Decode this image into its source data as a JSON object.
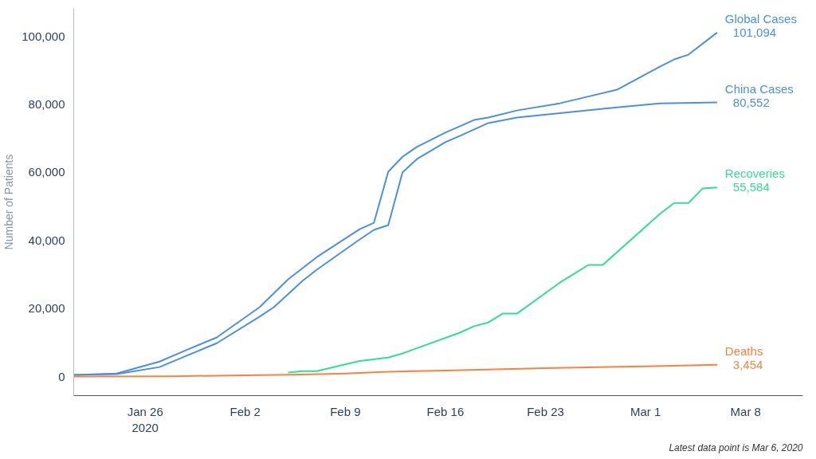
{
  "chart_data": {
    "type": "line",
    "ylabel": "Number of Patients",
    "annotations": [
      "Latest data point is Mar 6, 2020"
    ],
    "xlim": [
      "2020-01-21",
      "2020-03-12"
    ],
    "xticks": [
      {
        "value": "2020-01-26",
        "label": "Jan 26\n2020"
      },
      {
        "value": "2020-02-02",
        "label": "Feb 2"
      },
      {
        "value": "2020-02-09",
        "label": "Feb 9"
      },
      {
        "value": "2020-02-16",
        "label": "Feb 16"
      },
      {
        "value": "2020-02-23",
        "label": "Feb 23"
      },
      {
        "value": "2020-03-01",
        "label": "Mar 1"
      },
      {
        "value": "2020-03-08",
        "label": "Mar 8"
      }
    ],
    "yticks": [
      {
        "value": 0,
        "label": "0"
      },
      {
        "value": 20000,
        "label": "20,000"
      },
      {
        "value": 40000,
        "label": "40,000"
      },
      {
        "value": 60000,
        "label": "60,000"
      },
      {
        "value": 80000,
        "label": "80,000"
      },
      {
        "value": 100000,
        "label": "100,000"
      }
    ],
    "ylim": [
      -5600,
      108200
    ],
    "grid": false,
    "line_style": "solid",
    "series": [
      {
        "name": "Global Cases",
        "color": "#4a90e2",
        "x": [
          "2020-01-21",
          "2020-01-24",
          "2020-01-27",
          "2020-01-29",
          "2020-01-31",
          "2020-02-03",
          "2020-02-05",
          "2020-02-07",
          "2020-02-10",
          "2020-02-11",
          "2020-02-12",
          "2020-02-13",
          "2020-02-14",
          "2020-02-16",
          "2020-02-18",
          "2020-02-19",
          "2020-02-21",
          "2020-02-24",
          "2020-02-25",
          "2020-02-28",
          "2020-03-02",
          "2020-03-03",
          "2020-03-04",
          "2020-03-06"
        ],
        "values": [
          500,
          900,
          4400,
          8000,
          11500,
          20400,
          28600,
          35100,
          43300,
          45200,
          60200,
          64600,
          67500,
          71700,
          75400,
          76100,
          78200,
          80300,
          81300,
          84300,
          91100,
          93200,
          94600,
          101094
        ],
        "value_labels": [
          null,
          null,
          null,
          null,
          null,
          null,
          null,
          null,
          null,
          null,
          null,
          null,
          null,
          null,
          null,
          null,
          null,
          null,
          null,
          null,
          null,
          null,
          null,
          "101,094"
        ]
      },
      {
        "name": "China Cases",
        "color": "#4a90e2",
        "x": [
          "2020-01-21",
          "2020-01-24",
          "2020-01-27",
          "2020-01-29",
          "2020-01-31",
          "2020-02-03",
          "2020-02-04",
          "2020-02-06",
          "2020-02-07",
          "2020-02-10",
          "2020-02-11",
          "2020-02-12",
          "2020-02-13",
          "2020-02-14",
          "2020-02-16",
          "2020-02-17",
          "2020-02-19",
          "2020-02-21",
          "2020-02-28",
          "2020-03-02",
          "2020-03-06"
        ],
        "values": [
          500,
          700,
          2800,
          6300,
          9800,
          17600,
          20400,
          28100,
          31400,
          40300,
          43100,
          44500,
          60000,
          63900,
          68900,
          70700,
          74500,
          76100,
          79100,
          80300,
          80552
        ],
        "value_labels": [
          null,
          null,
          null,
          null,
          null,
          null,
          null,
          null,
          null,
          null,
          null,
          null,
          null,
          null,
          null,
          null,
          null,
          null,
          null,
          null,
          "80,552"
        ]
      },
      {
        "name": "Recoveries",
        "color": "#2fe092",
        "x": [
          "2020-02-05",
          "2020-02-06",
          "2020-02-07",
          "2020-02-09",
          "2020-02-10",
          "2020-02-12",
          "2020-02-13",
          "2020-02-17",
          "2020-02-18",
          "2020-02-19",
          "2020-02-20",
          "2020-02-21",
          "2020-02-24",
          "2020-02-25",
          "2020-02-26",
          "2020-02-27",
          "2020-03-02",
          "2020-03-03",
          "2020-03-04",
          "2020-03-05",
          "2020-03-06"
        ],
        "values": [
          1200,
          1600,
          1600,
          3600,
          4600,
          5600,
          6800,
          12900,
          14800,
          15900,
          18500,
          18500,
          27600,
          30200,
          32800,
          32800,
          47800,
          51000,
          51000,
          55300,
          55584
        ],
        "value_labels": [
          null,
          null,
          null,
          null,
          null,
          null,
          null,
          null,
          null,
          null,
          null,
          null,
          null,
          null,
          null,
          null,
          null,
          null,
          null,
          null,
          "55,584"
        ]
      },
      {
        "name": "Deaths",
        "color": "#ff7f3e",
        "x": [
          "2020-01-21",
          "2020-01-28",
          "2020-02-02",
          "2020-02-06",
          "2020-02-09",
          "2020-02-12",
          "2020-02-16",
          "2020-02-23",
          "2020-03-01",
          "2020-03-06"
        ],
        "values": [
          0,
          100,
          400,
          600,
          900,
          1400,
          1800,
          2500,
          3000,
          3454
        ],
        "value_labels": [
          null,
          null,
          null,
          null,
          null,
          null,
          null,
          null,
          null,
          "3,454"
        ]
      }
    ]
  }
}
